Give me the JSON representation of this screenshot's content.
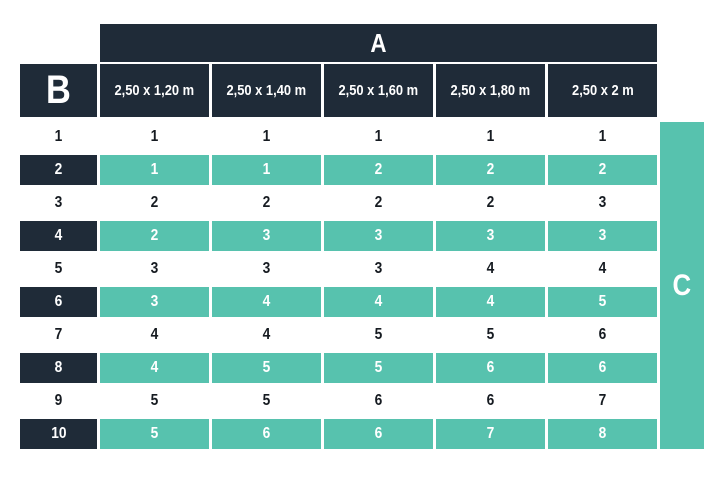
{
  "colors": {
    "navy": "#1f2b38",
    "teal": "#57c2ae",
    "ink": "#161b21",
    "background": "#ffffff"
  },
  "chart_data": {
    "type": "table",
    "column_group_label": "A",
    "row_group_label": "B",
    "side_label": "C",
    "columns": [
      "2,50 x 1,20 m",
      "2,50 x 1,40 m",
      "2,50 x 1,60 m",
      "2,50 x 1,80 m",
      "2,50 x 2 m"
    ],
    "rows": [
      {
        "label": "1",
        "highlighted": false,
        "values": [
          "1",
          "1",
          "1",
          "1",
          "1"
        ]
      },
      {
        "label": "2",
        "highlighted": true,
        "values": [
          "1",
          "1",
          "2",
          "2",
          "2"
        ]
      },
      {
        "label": "3",
        "highlighted": false,
        "values": [
          "2",
          "2",
          "2",
          "2",
          "3"
        ]
      },
      {
        "label": "4",
        "highlighted": true,
        "values": [
          "2",
          "3",
          "3",
          "3",
          "3"
        ]
      },
      {
        "label": "5",
        "highlighted": false,
        "values": [
          "3",
          "3",
          "3",
          "4",
          "4"
        ]
      },
      {
        "label": "6",
        "highlighted": true,
        "values": [
          "3",
          "4",
          "4",
          "4",
          "5"
        ]
      },
      {
        "label": "7",
        "highlighted": false,
        "values": [
          "4",
          "4",
          "5",
          "5",
          "6"
        ]
      },
      {
        "label": "8",
        "highlighted": true,
        "values": [
          "4",
          "5",
          "5",
          "6",
          "6"
        ]
      },
      {
        "label": "9",
        "highlighted": false,
        "values": [
          "5",
          "5",
          "6",
          "6",
          "7"
        ]
      },
      {
        "label": "10",
        "highlighted": true,
        "values": [
          "5",
          "6",
          "6",
          "7",
          "8"
        ]
      }
    ]
  }
}
